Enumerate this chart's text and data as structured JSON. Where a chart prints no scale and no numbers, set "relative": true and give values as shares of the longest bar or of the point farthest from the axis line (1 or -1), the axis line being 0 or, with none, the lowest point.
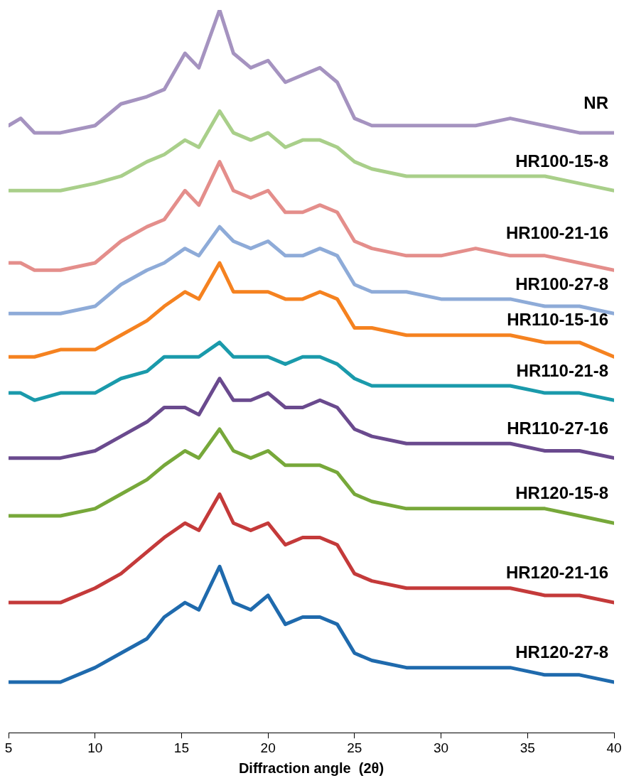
{
  "chart_data": {
    "type": "line",
    "relative": true,
    "xlabel": "Diffraction angle  (2θ)",
    "xlim": [
      5,
      40
    ],
    "xticks": [
      5,
      10,
      15,
      20,
      25,
      30,
      35,
      40
    ],
    "tick_labels": "x",
    "legend": false,
    "grid": false,
    "marker": "none",
    "line_style": "solid",
    "x": [
      5,
      5.7,
      6.5,
      8,
      10,
      11.5,
      13,
      14,
      15.2,
      16,
      17.2,
      18,
      19,
      20,
      21,
      22,
      23,
      24,
      25,
      26,
      28,
      30,
      32,
      34,
      36,
      38,
      40
    ],
    "series": [
      {
        "name": "NR",
        "color": "#a593c0",
        "values": [
          0.84,
          0.85,
          0.83,
          0.83,
          0.84,
          0.87,
          0.88,
          0.89,
          0.94,
          0.92,
          1.0,
          0.94,
          0.92,
          0.93,
          0.9,
          0.91,
          0.92,
          0.9,
          0.85,
          0.84,
          0.84,
          0.84,
          0.84,
          0.85,
          0.84,
          0.83,
          0.83
        ]
      },
      {
        "name": "HR100-15-8",
        "color": "#a9cf8a",
        "values": [
          0.75,
          0.75,
          0.75,
          0.75,
          0.76,
          0.77,
          0.79,
          0.8,
          0.82,
          0.81,
          0.86,
          0.83,
          0.82,
          0.83,
          0.81,
          0.82,
          0.82,
          0.81,
          0.79,
          0.78,
          0.77,
          0.77,
          0.77,
          0.77,
          0.77,
          0.76,
          0.75
        ]
      },
      {
        "name": "HR100-21-16",
        "color": "#e48e8b",
        "values": [
          0.65,
          0.65,
          0.64,
          0.64,
          0.65,
          0.68,
          0.7,
          0.71,
          0.75,
          0.73,
          0.79,
          0.75,
          0.74,
          0.75,
          0.72,
          0.72,
          0.73,
          0.72,
          0.68,
          0.67,
          0.66,
          0.66,
          0.67,
          0.66,
          0.66,
          0.65,
          0.64
        ]
      },
      {
        "name": "HR100-27-8",
        "color": "#8eabd8",
        "values": [
          0.58,
          0.58,
          0.58,
          0.58,
          0.59,
          0.62,
          0.64,
          0.65,
          0.67,
          0.66,
          0.7,
          0.68,
          0.67,
          0.68,
          0.66,
          0.66,
          0.67,
          0.66,
          0.62,
          0.61,
          0.61,
          0.6,
          0.6,
          0.6,
          0.59,
          0.59,
          0.58
        ]
      },
      {
        "name": "HR110-15-16",
        "color": "#f58220",
        "values": [
          0.52,
          0.52,
          0.52,
          0.53,
          0.53,
          0.55,
          0.57,
          0.59,
          0.61,
          0.6,
          0.65,
          0.61,
          0.61,
          0.61,
          0.6,
          0.6,
          0.61,
          0.6,
          0.56,
          0.56,
          0.55,
          0.55,
          0.55,
          0.55,
          0.54,
          0.54,
          0.52
        ]
      },
      {
        "name": "HR110-21-8",
        "color": "#1a9aab",
        "values": [
          0.47,
          0.47,
          0.46,
          0.47,
          0.47,
          0.49,
          0.5,
          0.52,
          0.52,
          0.52,
          0.54,
          0.52,
          0.52,
          0.52,
          0.51,
          0.52,
          0.52,
          0.51,
          0.49,
          0.48,
          0.48,
          0.48,
          0.48,
          0.48,
          0.47,
          0.47,
          0.46
        ]
      },
      {
        "name": "HR110-27-16",
        "color": "#6a4a8e",
        "values": [
          0.38,
          0.38,
          0.38,
          0.38,
          0.39,
          0.41,
          0.43,
          0.45,
          0.45,
          0.44,
          0.49,
          0.46,
          0.46,
          0.47,
          0.45,
          0.45,
          0.46,
          0.45,
          0.42,
          0.41,
          0.4,
          0.4,
          0.4,
          0.4,
          0.39,
          0.39,
          0.38
        ]
      },
      {
        "name": "HR120-15-8",
        "color": "#77a83a",
        "values": [
          0.3,
          0.3,
          0.3,
          0.3,
          0.31,
          0.33,
          0.35,
          0.37,
          0.39,
          0.38,
          0.42,
          0.39,
          0.38,
          0.39,
          0.37,
          0.37,
          0.37,
          0.36,
          0.33,
          0.32,
          0.31,
          0.31,
          0.31,
          0.31,
          0.31,
          0.3,
          0.29
        ]
      },
      {
        "name": "HR120-21-16",
        "color": "#c43a3a",
        "values": [
          0.18,
          0.18,
          0.18,
          0.18,
          0.2,
          0.22,
          0.25,
          0.27,
          0.29,
          0.28,
          0.33,
          0.29,
          0.28,
          0.29,
          0.26,
          0.27,
          0.27,
          0.26,
          0.22,
          0.21,
          0.2,
          0.2,
          0.2,
          0.2,
          0.19,
          0.19,
          0.18
        ]
      },
      {
        "name": "HR120-27-8",
        "color": "#1f6aad",
        "values": [
          0.07,
          0.07,
          0.07,
          0.07,
          0.09,
          0.11,
          0.13,
          0.16,
          0.18,
          0.17,
          0.23,
          0.18,
          0.17,
          0.19,
          0.15,
          0.16,
          0.16,
          0.15,
          0.11,
          0.1,
          0.09,
          0.09,
          0.09,
          0.09,
          0.08,
          0.08,
          0.07
        ]
      }
    ]
  }
}
